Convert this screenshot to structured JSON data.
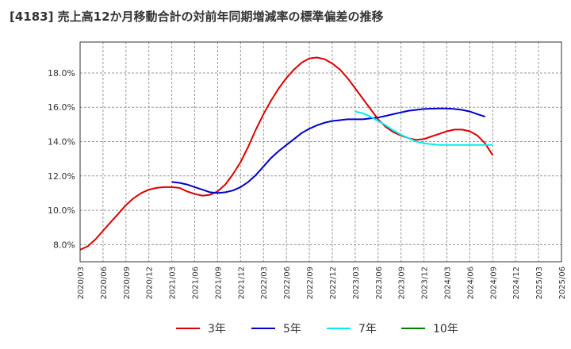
{
  "title": "[4183]  売上高12か月移動合計の対前年同期増減率の標準偏差の推移",
  "chart_data": {
    "type": "line",
    "ylim": [
      7.0,
      19.8
    ],
    "yticks": [
      8,
      10,
      12,
      14,
      16,
      18
    ],
    "y_tick_labels": [
      "8.0%",
      "10.0%",
      "12.0%",
      "14.0%",
      "16.0%",
      "18.0%"
    ],
    "x_tick_labels": [
      "2020/03",
      "2020/06",
      "2020/09",
      "2020/12",
      "2021/03",
      "2021/06",
      "2021/09",
      "2021/12",
      "2022/03",
      "2022/06",
      "2022/09",
      "2022/12",
      "2023/03",
      "2023/06",
      "2023/09",
      "2023/12",
      "2024/03",
      "2024/06",
      "2024/09",
      "2024/12",
      "2025/03",
      "2025/06"
    ],
    "grid": true,
    "legend_position": "bottom",
    "series": [
      {
        "name": "3年",
        "color": "#dd0000",
        "start": 0,
        "values": [
          7.7,
          7.9,
          8.3,
          8.8,
          9.3,
          9.8,
          10.3,
          10.7,
          11.0,
          11.2,
          11.3,
          11.35,
          11.35,
          11.3,
          11.1,
          10.95,
          10.85,
          10.9,
          11.1,
          11.5,
          12.1,
          12.8,
          13.7,
          14.7,
          15.6,
          16.4,
          17.1,
          17.7,
          18.2,
          18.6,
          18.85,
          18.9,
          18.8,
          18.55,
          18.2,
          17.7,
          17.1,
          16.5,
          15.9,
          15.3,
          14.85,
          14.55,
          14.35,
          14.2,
          14.1,
          14.15,
          14.3,
          14.45,
          14.6,
          14.7,
          14.7,
          14.6,
          14.35,
          13.9,
          13.2
        ]
      },
      {
        "name": "5年",
        "color": "#0000cc",
        "start": 12,
        "values": [
          11.65,
          11.6,
          11.5,
          11.35,
          11.2,
          11.05,
          11.0,
          11.05,
          11.15,
          11.35,
          11.65,
          12.05,
          12.55,
          13.05,
          13.45,
          13.8,
          14.15,
          14.5,
          14.75,
          14.95,
          15.1,
          15.2,
          15.25,
          15.3,
          15.3,
          15.3,
          15.35,
          15.4,
          15.5,
          15.6,
          15.7,
          15.8,
          15.85,
          15.9,
          15.92,
          15.93,
          15.93,
          15.9,
          15.85,
          15.75,
          15.6,
          15.45
        ]
      },
      {
        "name": "7年",
        "color": "#00eeee",
        "start": 36,
        "values": [
          15.75,
          15.65,
          15.45,
          15.2,
          14.95,
          14.65,
          14.4,
          14.2,
          14.0,
          13.9,
          13.85,
          13.8,
          13.8,
          13.8,
          13.8,
          13.8,
          13.8,
          13.8,
          13.8
        ]
      },
      {
        "name": "10年",
        "color": "#008000",
        "start": 0,
        "values": []
      }
    ]
  }
}
